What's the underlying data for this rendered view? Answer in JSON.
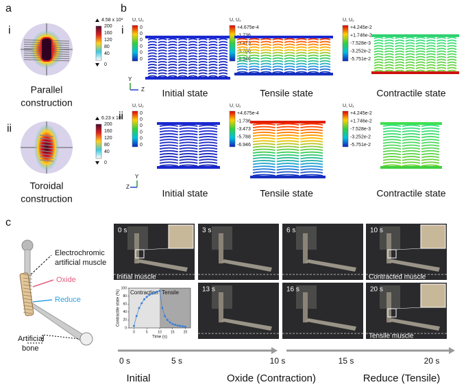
{
  "panel_a": {
    "label": "a",
    "rows": [
      {
        "label": "i",
        "colorbar_max": "4.58 x 10³",
        "colorbar_ticks": [
          "200",
          "160",
          "120",
          "80",
          "40",
          "0"
        ],
        "caption": [
          "Parallel",
          "construction"
        ]
      },
      {
        "label": "ii",
        "colorbar_max": "6.23 x 10³",
        "colorbar_ticks": [
          "200",
          "160",
          "120",
          "80",
          "40",
          "0"
        ],
        "caption": [
          "Toroidal",
          "construction"
        ]
      }
    ]
  },
  "panel_b": {
    "label": "b",
    "rows": [
      {
        "label": "i",
        "axes": [
          "Y",
          "Z"
        ],
        "states": [
          {
            "colorbar_title": "U, U₂",
            "colorbar_ticks": [
              "0",
              "0",
              "0",
              "0",
              "0",
              "0"
            ],
            "caption": "Initial state"
          },
          {
            "colorbar_title": "U, U₂",
            "colorbar_ticks": [
              "+4.675e-4",
              "-1.736",
              "-3.473",
              "-5.788",
              "-6.946"
            ],
            "caption": "Tensile state"
          },
          {
            "colorbar_title": "U, U₂",
            "colorbar_ticks": [
              "+4.245e-2",
              "+1.746e-2",
              "-7.528e-3",
              "-3.252e-2",
              "-5.751e-2"
            ],
            "caption": "Contractile state"
          }
        ]
      },
      {
        "label": "ii",
        "axes": [
          "Y",
          "Z"
        ],
        "states": [
          {
            "colorbar_title": "U, U₂",
            "colorbar_ticks": [
              "0",
              "0",
              "0",
              "0",
              "0",
              "0"
            ],
            "caption": "Initial state"
          },
          {
            "colorbar_title": "U, U₂",
            "colorbar_ticks": [
              "+4.675e-4",
              "-1.736",
              "-3.473",
              "-5.788",
              "-6.946"
            ],
            "caption": "Tensile state"
          },
          {
            "colorbar_title": "U, U₂",
            "colorbar_ticks": [
              "+4.245e-2",
              "+1.746e-2",
              "-7.528e-3",
              "-3.252e-2",
              "-5.751e-2"
            ],
            "caption": "Contractile state"
          }
        ]
      }
    ]
  },
  "panel_c": {
    "label": "c",
    "diagram": {
      "muscle": [
        "Electrochromic",
        "artificial muscle"
      ],
      "oxide": "Oxide",
      "reduce": "Reduce",
      "bone": [
        "Artificial",
        "bone"
      ]
    },
    "photos": [
      {
        "time": "0 s",
        "caption": "Initial muscle"
      },
      {
        "time": "3 s"
      },
      {
        "time": "6 s"
      },
      {
        "time": "10 s",
        "caption": "Contracted muscle"
      },
      {
        "time": "13 s"
      },
      {
        "time": "16 s"
      },
      {
        "time": "20 s",
        "caption": "Tensile muscle"
      }
    ],
    "inset_chart": {
      "type": "scatter",
      "phases": [
        "Contraction",
        "Tensile"
      ],
      "y_label": "Contractile state (%)",
      "x_label": "Time (s)",
      "x": [
        0,
        1,
        2,
        3,
        4,
        5,
        6,
        7,
        8,
        9,
        10,
        11,
        12,
        13,
        14,
        15,
        16,
        17,
        18,
        19,
        20
      ],
      "values": [
        5,
        30,
        50,
        62,
        72,
        78,
        83,
        86,
        89,
        91,
        93,
        50,
        30,
        20,
        14,
        10,
        8,
        6,
        5,
        4,
        3
      ],
      "color": "#3a7fd5",
      "xlim": [
        -2,
        22
      ],
      "ylim": [
        0,
        100
      ],
      "xticks": [
        0,
        5,
        10,
        15,
        20
      ],
      "yticks": [
        0,
        20,
        40,
        60,
        80,
        100
      ]
    },
    "timeline": [
      "0 s",
      "5 s",
      "10 s",
      "15 s",
      "20 s"
    ],
    "phases": [
      "Initial",
      "Oxide (Contraction)",
      "Reduce (Tensile)"
    ]
  }
}
